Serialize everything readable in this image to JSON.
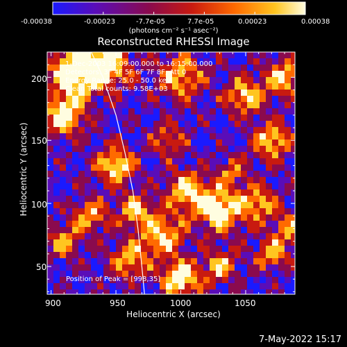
{
  "colorbar": {
    "tick_labels": [
      "-0.00038",
      "-0.00023",
      "-7.7e-05",
      "7.7e-05",
      "0.00023",
      "0.00038"
    ],
    "units": "(photons cm⁻² s⁻¹ asec⁻²)",
    "colors": [
      "#1a1aff",
      "#5a0db8",
      "#8a0a4e",
      "#c81a10",
      "#ff6a00",
      "#ffc520",
      "#fffde0"
    ]
  },
  "title": "Reconstructed RHESSI Image",
  "info_lines": [
    "1-Dec-2003 16:09:00.000 to 16:15:00.000",
    "Detectors: 3F 4F 5F 6F 7F 8F, Att 0",
    "Energy Range: 25.0 - 50.0 keV",
    "Clean    Total counts: 9.58E+03"
  ],
  "peak_label": "Position of Peak = [998,35]",
  "footer": "7-May-2022 15:17",
  "chart_data": {
    "type": "heatmap",
    "title": "Reconstructed RHESSI Image",
    "xlabel": "Heliocentric X (arcsec)",
    "ylabel": "Heliocentric Y (arcsec)",
    "xlim": [
      897,
      1088
    ],
    "ylim": [
      28,
      220
    ],
    "x_ticks": [
      900,
      950,
      1000,
      1050
    ],
    "y_ticks": [
      50,
      100,
      150,
      200
    ],
    "colorbar_range": [
      -0.00038,
      0.00038
    ],
    "limb_curve": {
      "x": [
        931,
        940,
        950,
        957,
        963,
        967,
        970,
        972
      ],
      "y": [
        220,
        200,
        170,
        140,
        110,
        80,
        50,
        28
      ]
    },
    "peak": {
      "x": 998,
      "y": 35
    }
  }
}
